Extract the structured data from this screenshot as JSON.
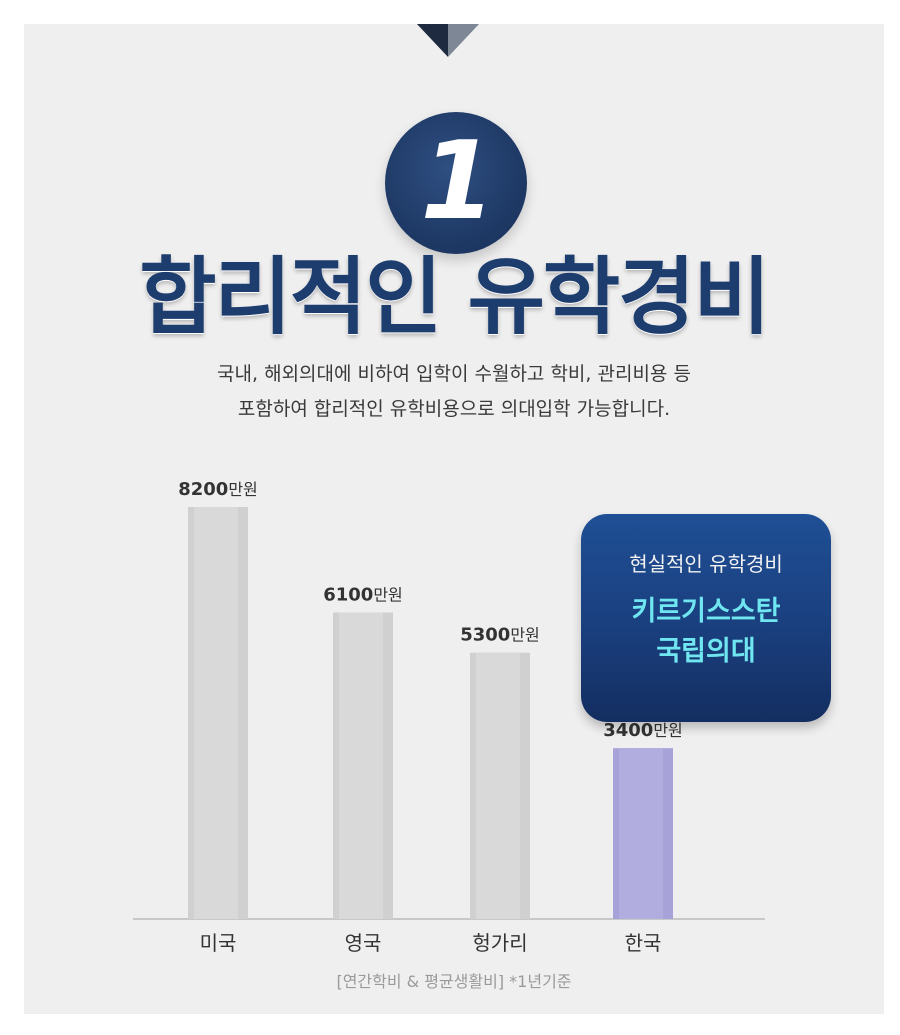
{
  "header": {
    "number": "1",
    "title": "합리적인 유학경비",
    "subtitle_lines": [
      "국내, 해외의대에 비하여 입학이 수월하고 학비, 관리비용 등",
      "포함하여 합리적인 유학비용으로 의대입학 가능합니다."
    ]
  },
  "callout": {
    "subtitle": "현실적인 유학경비",
    "title_lines": [
      "키르기스스탄",
      "국립의대"
    ]
  },
  "footnote": "[연간학비 & 평균생활비] *1년기준",
  "colors": {
    "navy": "#1d3d6e",
    "bar_gray": "#d0d0d0",
    "bar_highlight": "#a7a2d8",
    "callout_text": "#6fe6f0"
  },
  "chart_data": {
    "type": "bar",
    "categories": [
      "미국",
      "영국",
      "헝가리",
      "한국"
    ],
    "values": [
      8200,
      6100,
      5300,
      3400
    ],
    "value_labels": [
      "8200",
      "6100",
      "5300",
      "3400"
    ],
    "unit_label": "만원",
    "highlight_index": 3,
    "ylim": [
      0,
      8200
    ],
    "grid": false,
    "legend": "none",
    "title": "",
    "xlabel": "",
    "ylabel": ""
  }
}
